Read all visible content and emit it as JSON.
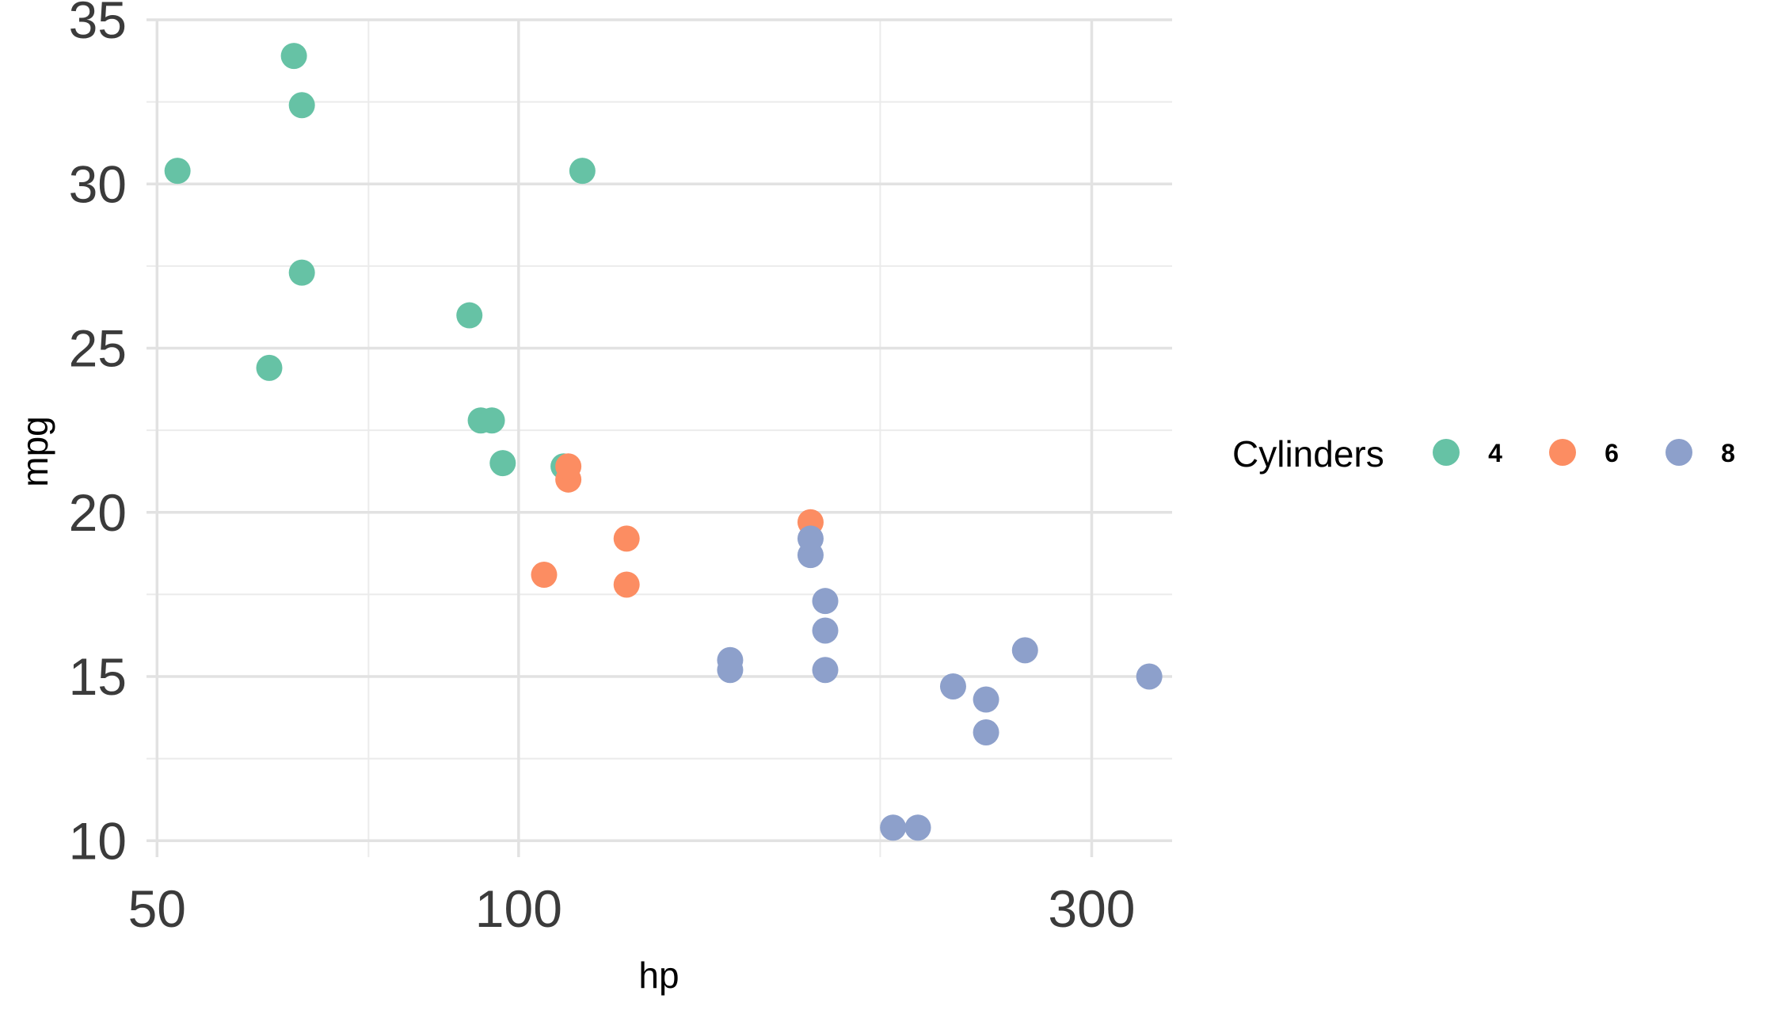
{
  "chart_data": {
    "type": "scatter",
    "xlabel": "hp",
    "ylabel": "mpg",
    "x_scale": "log",
    "xlim": [
      49,
      350
    ],
    "ylim": [
      9.5,
      35
    ],
    "x_ticks": [
      50,
      100,
      300
    ],
    "x_tick_labels": [
      "50",
      "100",
      "300"
    ],
    "x_minor_ticks": [
      75,
      200
    ],
    "y_ticks": [
      10,
      15,
      20,
      25,
      30,
      35
    ],
    "y_tick_labels": [
      "10",
      "15",
      "20",
      "25",
      "30",
      "35"
    ],
    "y_minor_ticks": [
      12.5,
      17.5,
      22.5,
      27.5,
      32.5
    ],
    "grid": true,
    "legend": {
      "title": "Cylinders",
      "position": "right",
      "entries": [
        {
          "label": "4",
          "color": "#66C2A5"
        },
        {
          "label": "6",
          "color": "#FC8D62"
        },
        {
          "label": "8",
          "color": "#8DA0CB"
        }
      ]
    },
    "series": [
      {
        "name": "4",
        "color": "#66C2A5",
        "points": [
          {
            "x": 93,
            "y": 22.8
          },
          {
            "x": 62,
            "y": 24.4
          },
          {
            "x": 95,
            "y": 22.8
          },
          {
            "x": 66,
            "y": 32.4
          },
          {
            "x": 52,
            "y": 30.4
          },
          {
            "x": 65,
            "y": 33.9
          },
          {
            "x": 97,
            "y": 21.5
          },
          {
            "x": 66,
            "y": 27.3
          },
          {
            "x": 91,
            "y": 26.0
          },
          {
            "x": 113,
            "y": 30.4
          },
          {
            "x": 109,
            "y": 21.4
          }
        ]
      },
      {
        "name": "6",
        "color": "#FC8D62",
        "points": [
          {
            "x": 110,
            "y": 21.0
          },
          {
            "x": 110,
            "y": 21.4
          },
          {
            "x": 105,
            "y": 18.1
          },
          {
            "x": 123,
            "y": 19.2
          },
          {
            "x": 123,
            "y": 17.8
          },
          {
            "x": 175,
            "y": 19.7
          }
        ]
      },
      {
        "name": "8",
        "color": "#8DA0CB",
        "points": [
          {
            "x": 175,
            "y": 18.7
          },
          {
            "x": 245,
            "y": 14.3
          },
          {
            "x": 180,
            "y": 16.4
          },
          {
            "x": 180,
            "y": 17.3
          },
          {
            "x": 180,
            "y": 15.2
          },
          {
            "x": 205,
            "y": 10.4
          },
          {
            "x": 215,
            "y": 10.4
          },
          {
            "x": 150,
            "y": 15.5
          },
          {
            "x": 150,
            "y": 15.2
          },
          {
            "x": 245,
            "y": 13.3
          },
          {
            "x": 175,
            "y": 19.2
          },
          {
            "x": 264,
            "y": 15.8
          },
          {
            "x": 335,
            "y": 15.0
          },
          {
            "x": 230,
            "y": 14.7
          }
        ]
      }
    ]
  }
}
